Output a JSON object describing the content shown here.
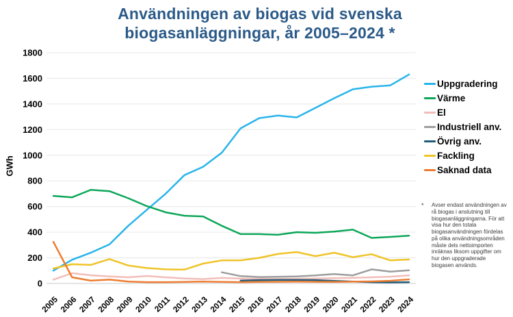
{
  "title": {
    "line1": "Användningen av biogas vid svenska",
    "line2": "biogasanläggningar, år 2005–2024 *"
  },
  "y_axis": {
    "label": "GWh"
  },
  "legend": {
    "items": [
      {
        "label": "Uppgradering",
        "color": "#27B4EA"
      },
      {
        "label": "Värme",
        "color": "#0BA658"
      },
      {
        "label": "El",
        "color": "#F2BDB9"
      },
      {
        "label": "Industriell anv.",
        "color": "#9D9D9D"
      },
      {
        "label": "Övrig anv.",
        "color": "#1F5C78"
      },
      {
        "label": "Fackling",
        "color": "#EFC327"
      },
      {
        "label": "Saknad data",
        "color": "#ED7C31"
      }
    ]
  },
  "footnote": {
    "marker": "*",
    "text": "Avser endast användningen av rå biogas i anslutning till biogasanläggningarna. För att visa hur den totala biogasanvändningen fördelas på olika användningsområden måste dels nettoimporten inräknas liksom uppgifter om hur den uppgraderade biogasen används."
  },
  "chart_data": {
    "type": "line",
    "title": "Användningen av biogas vid svenska biogasanläggningar, år 2005–2024",
    "xlabel": "",
    "ylabel": "GWh",
    "ylim": [
      0,
      1800
    ],
    "ytick_step": 200,
    "grid": "horizontal",
    "legend_position": "right",
    "x": [
      2005,
      2006,
      2007,
      2008,
      2009,
      2010,
      2011,
      2012,
      2013,
      2014,
      2015,
      2016,
      2017,
      2018,
      2019,
      2020,
      2021,
      2022,
      2023,
      2024
    ],
    "series": [
      {
        "name": "Uppgradering",
        "color": "#27B4EA",
        "values": [
          100,
          185,
          240,
          305,
          450,
          575,
          700,
          845,
          910,
          1020,
          1210,
          1290,
          1310,
          1295,
          1370,
          1445,
          1515,
          1535,
          1545,
          1630
        ]
      },
      {
        "name": "Värme",
        "color": "#0BA658",
        "values": [
          683,
          672,
          730,
          720,
          665,
          603,
          555,
          528,
          523,
          450,
          385,
          385,
          380,
          400,
          395,
          405,
          420,
          355,
          363,
          373
        ]
      },
      {
        "name": "El",
        "color": "#F2BDB9",
        "values": [
          30,
          80,
          64,
          55,
          48,
          58,
          48,
          39,
          34,
          43,
          38,
          36,
          36,
          37,
          39,
          41,
          44,
          48,
          53,
          63
        ]
      },
      {
        "name": "Industriell anv.",
        "color": "#9D9D9D",
        "values": [
          null,
          null,
          null,
          null,
          null,
          null,
          null,
          null,
          null,
          87,
          57,
          50,
          52,
          55,
          63,
          73,
          63,
          110,
          92,
          103
        ]
      },
      {
        "name": "Övrig anv.",
        "color": "#1F5C78",
        "values": [
          null,
          null,
          null,
          null,
          null,
          null,
          null,
          null,
          null,
          null,
          22,
          26,
          27,
          27,
          26,
          20,
          15,
          10,
          8,
          10
        ]
      },
      {
        "name": "Fackling",
        "color": "#EFC327",
        "values": [
          117,
          150,
          145,
          190,
          140,
          120,
          110,
          108,
          155,
          180,
          180,
          200,
          230,
          245,
          213,
          240,
          205,
          228,
          180,
          187
        ]
      },
      {
        "name": "Saknad data",
        "color": "#ED7C31",
        "values": [
          325,
          48,
          22,
          30,
          15,
          10,
          10,
          12,
          15,
          12,
          10,
          12,
          13,
          14,
          13,
          12,
          14,
          16,
          21,
          32
        ]
      }
    ]
  }
}
